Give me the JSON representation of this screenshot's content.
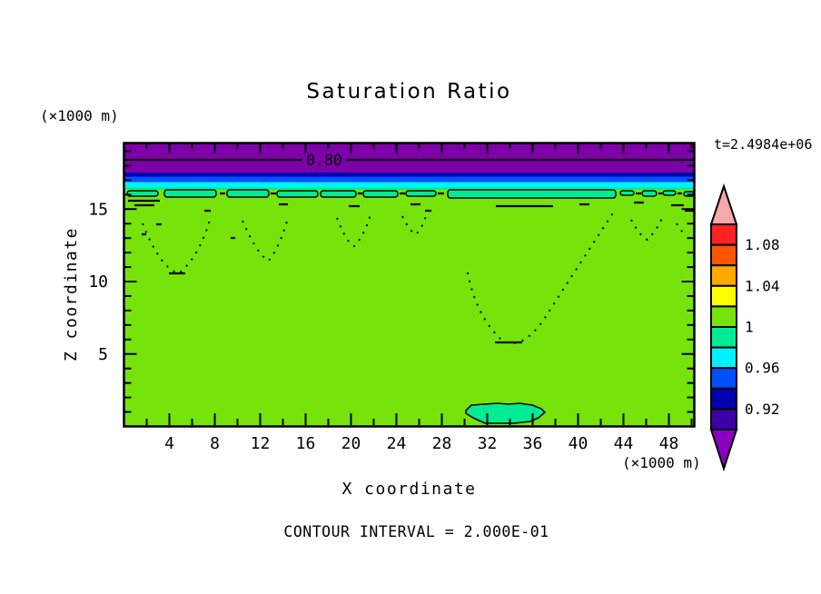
{
  "title": "Saturation Ratio",
  "time_label": "t=2.4984e+06",
  "z_unit_label": "(×1000 m)",
  "x_unit_label": "(×1000 m)",
  "x_axis": {
    "title": "X coordinate",
    "major_ticks": [
      4,
      8,
      12,
      16,
      20,
      24,
      28,
      32,
      36,
      40,
      44,
      48
    ]
  },
  "z_axis": {
    "title": "Z coordinate",
    "major_ticks": [
      5,
      10,
      15
    ]
  },
  "contour_label": "0.80",
  "contour_note": "CONTOUR INTERVAL = 2.000E-01",
  "palette": {
    "field_green": "#76E40B",
    "spring_green": "#00EC94",
    "cyan": "#00F2FF",
    "blue": "#0050FF",
    "navy": "#0000B2",
    "indigo": "#3D00A8",
    "purple_band": "#7D00A8",
    "purple_arrow": "#8A00BE",
    "pink_arrow": "#F7A8AC",
    "yellow": "#FFFF00",
    "orange": "#FFA800",
    "orange_red": "#FF5500",
    "red": "#FF2222",
    "line_black": "#000000"
  },
  "colorbar": {
    "arrow_top_color": "#F7A8AC",
    "arrow_bottom_color": "#8A00BE",
    "cells": [
      {
        "color": "#FF2222",
        "label": "1.08"
      },
      {
        "color": "#FF5500"
      },
      {
        "color": "#FFA800",
        "label": "1.04"
      },
      {
        "color": "#FFFF00"
      },
      {
        "color": "#76E40B",
        "label": "1"
      },
      {
        "color": "#00EC94"
      },
      {
        "color": "#00F2FF",
        "label": "0.96"
      },
      {
        "color": "#0050FF"
      },
      {
        "color": "#0000B2",
        "label": "0.92"
      },
      {
        "color": "#3D00A8"
      }
    ]
  },
  "chart_data": {
    "type": "heatmap",
    "title": "Saturation Ratio",
    "xlabel": "X coordinate",
    "ylabel": "Z coordinate",
    "x_unit": "(×1000 m)",
    "z_unit": "(×1000 m)",
    "xlim": [
      0,
      50.3
    ],
    "zlim": [
      0,
      19.6
    ],
    "x_ticks": [
      4,
      8,
      12,
      16,
      20,
      24,
      28,
      32,
      36,
      40,
      44,
      48
    ],
    "z_ticks": [
      5,
      10,
      15
    ],
    "time": "t=2.4984e+06",
    "contour_interval": "2.000E-01",
    "labeled_contour": {
      "value": 0.8,
      "z_approx": 18.4,
      "note": "solid black contour inside upper purple band"
    },
    "colorbar_levels": {
      "labels": [
        1.08,
        1.04,
        1,
        0.96,
        0.92
      ],
      "cell_min": 0.9,
      "cell_max": 1.1,
      "cell_step": 0.02,
      "below_range_color": "purple",
      "above_range_color": "pink"
    },
    "layers": [
      {
        "z_range": [
          18.0,
          19.6
        ],
        "saturation": "< 0.90",
        "color": "purple"
      },
      {
        "z_range": [
          17.3,
          18.0
        ],
        "saturation": "0.92-0.94",
        "color": "navy"
      },
      {
        "z_range": [
          16.9,
          17.3
        ],
        "saturation": "0.94-0.96",
        "color": "blue"
      },
      {
        "z_range": [
          16.5,
          16.9
        ],
        "saturation": "0.96-0.98",
        "color": "cyan"
      },
      {
        "z_range": [
          16.4,
          16.5
        ],
        "saturation": "0.98-1.00",
        "color": "spring-green"
      },
      {
        "z_range": [
          0.0,
          16.4
        ],
        "saturation": "1.00-1.02",
        "color": "yellow-green"
      }
    ],
    "features": [
      {
        "name": "lens-row",
        "desc": "thin spring-green lenses at z ≈ 16.2 spanning full width, widest from x ≈ 28.5 to 43.5"
      },
      {
        "name": "dotted-v-contours",
        "desc": "dotted contour streaks descending below lens row near x ≈ 4, 9, 12, 19, 24, 25"
      },
      {
        "name": "dotted-u-contour",
        "desc": "large dotted U-shaped contour from x ≈ 30 to 43 reaching down to z ≈ 6"
      },
      {
        "name": "bottom-blob",
        "desc": "spring-green region at base, x ≈ 30 to 37, z 0 to 1.6"
      }
    ]
  }
}
